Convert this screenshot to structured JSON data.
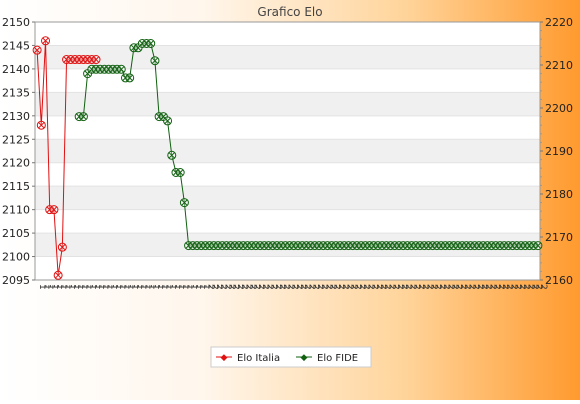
{
  "chart_data": {
    "type": "line",
    "title": "Grafico Elo",
    "x_tick_labels": [
      "1",
      "1",
      "1",
      "1",
      "1",
      "1",
      "1",
      "1",
      "1",
      "1",
      "1",
      "1",
      "1",
      "1",
      "1",
      "1",
      "1",
      "1",
      "1",
      "1",
      "1",
      "1",
      "1",
      "1",
      "1",
      "1",
      "1",
      "1",
      "1",
      "1",
      "1",
      "1",
      "1",
      "1",
      "1",
      "1",
      "1",
      "1",
      "1",
      "1",
      "2",
      "2",
      "2",
      "2",
      "2",
      "2",
      "2",
      "2",
      "2",
      "2",
      "2",
      "2",
      "2",
      "2",
      "2",
      "2",
      "2",
      "2",
      "2",
      "2",
      "2",
      "2",
      "2",
      "2",
      "2",
      "2",
      "2",
      "2",
      "2",
      "2",
      "2",
      "2",
      "2",
      "2",
      "2",
      "2",
      "2",
      "2",
      "2",
      "2",
      "2",
      "2",
      "2",
      "2",
      "2",
      "2",
      "2",
      "2",
      "2",
      "2",
      "2",
      "2",
      "2",
      "2",
      "2",
      "2",
      "2",
      "2",
      "2",
      "2",
      "2",
      "2",
      "2",
      "2",
      "2",
      "2",
      "2",
      "2",
      "2",
      "2",
      "2",
      "2",
      "2",
      "2",
      "2",
      "2",
      "2",
      "2",
      "2",
      "2"
    ],
    "y_left": {
      "min": 2095,
      "max": 2150,
      "ticks": [
        2095,
        2100,
        2105,
        2110,
        2115,
        2120,
        2125,
        2130,
        2135,
        2140,
        2145,
        2150
      ]
    },
    "y_right": {
      "min": 2160,
      "max": 2220,
      "ticks": [
        2160,
        2170,
        2180,
        2190,
        2200,
        2210,
        2220
      ]
    },
    "grid": true,
    "legend_position": "bottom",
    "colors": {
      "elo_italia": "#e01010",
      "elo_fide": "#106010",
      "band": "#f0f0f0",
      "plot_bg": "#ffffff"
    },
    "series": [
      {
        "name": "Elo Italia",
        "axis": "left",
        "x": [
          1,
          2,
          3,
          4,
          5,
          6,
          7,
          8,
          9,
          10,
          11,
          12,
          13,
          14,
          15
        ],
        "values": [
          2144,
          2128,
          2146,
          2110,
          2110,
          2096,
          2102,
          2142,
          2142,
          2142,
          2142,
          2142,
          2142,
          2142,
          2142
        ]
      },
      {
        "name": "Elo FIDE",
        "axis": "right",
        "x": [
          11,
          12,
          13,
          14,
          15,
          16,
          17,
          18,
          19,
          20,
          21,
          22,
          23,
          24,
          25,
          26,
          27,
          28,
          29,
          30,
          31,
          32,
          33,
          34,
          35,
          36,
          37,
          38,
          39,
          40,
          41,
          42,
          43,
          44,
          45,
          46,
          47,
          48,
          49,
          50,
          51,
          52,
          53,
          54,
          55,
          56,
          57,
          58,
          59,
          60,
          61,
          62,
          63,
          64,
          65,
          66,
          67,
          68,
          69,
          70,
          71,
          72,
          73,
          74,
          75,
          76,
          77,
          78,
          79,
          80,
          81,
          82,
          83,
          84,
          85,
          86,
          87,
          88,
          89,
          90,
          91,
          92,
          93,
          94,
          95,
          96,
          97,
          98,
          99,
          100,
          101,
          102,
          103,
          104,
          105,
          106,
          107,
          108,
          109,
          110,
          111,
          112,
          113,
          114,
          115,
          116,
          117,
          118,
          119,
          120
        ],
        "values": [
          2198,
          2198,
          2208,
          2209,
          2209,
          2209,
          2209,
          2209,
          2209,
          2209,
          2209,
          2207,
          2207,
          2214,
          2214,
          2215,
          2215,
          2215,
          2211,
          2198,
          2198,
          2197,
          2189,
          2185,
          2185,
          2178,
          2168,
          2168,
          2168,
          2168,
          2168,
          2168,
          2168,
          2168,
          2168,
          2168,
          2168,
          2168,
          2168,
          2168,
          2168,
          2168,
          2168,
          2168,
          2168,
          2168,
          2168,
          2168,
          2168,
          2168,
          2168,
          2168,
          2168,
          2168,
          2168,
          2168,
          2168,
          2168,
          2168,
          2168,
          2168,
          2168,
          2168,
          2168,
          2168,
          2168,
          2168,
          2168,
          2168,
          2168,
          2168,
          2168,
          2168,
          2168,
          2168,
          2168,
          2168,
          2168,
          2168,
          2168,
          2168,
          2168,
          2168,
          2168,
          2168,
          2168,
          2168,
          2168,
          2168,
          2168,
          2168,
          2168,
          2168,
          2168,
          2168,
          2168,
          2168,
          2168,
          2168,
          2168,
          2168,
          2168,
          2168,
          2168,
          2168,
          2168,
          2168,
          2168,
          2168,
          2168
        ]
      }
    ]
  }
}
